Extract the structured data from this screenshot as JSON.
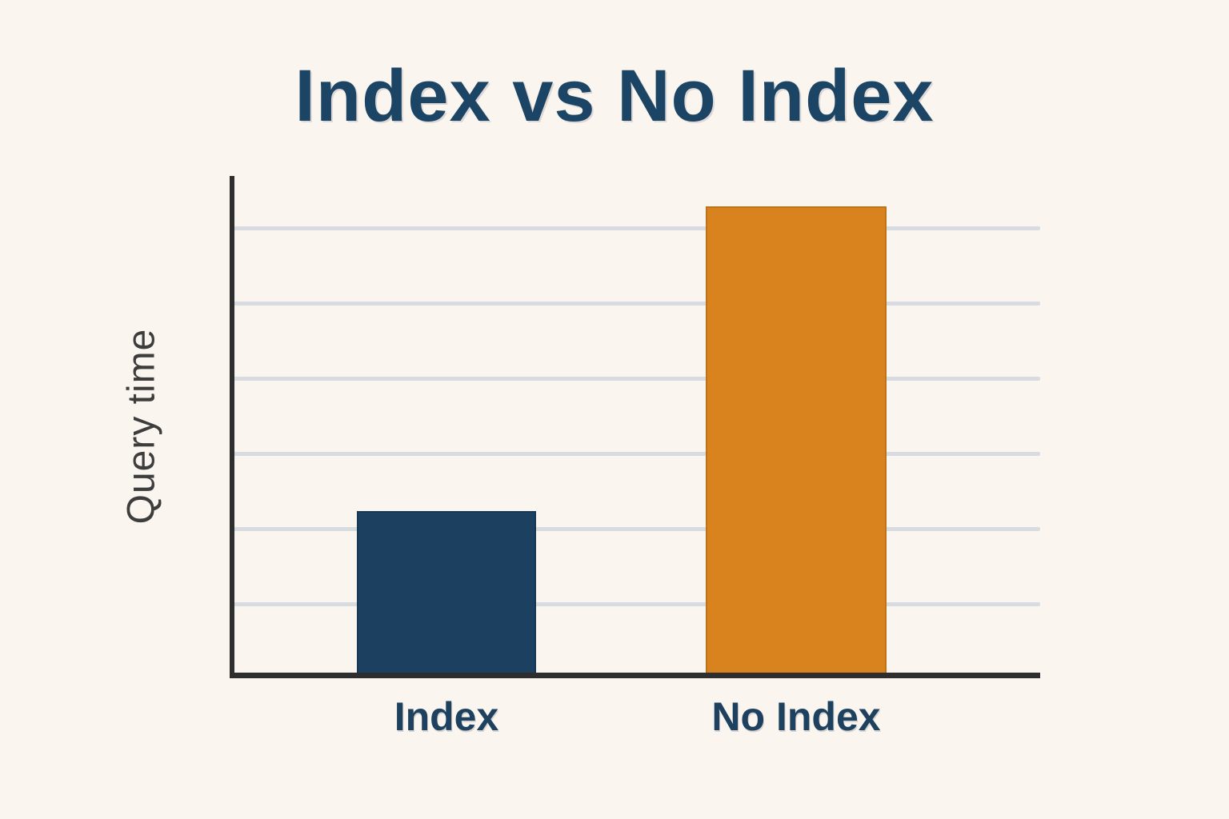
{
  "page": {
    "background": "#faf5ee"
  },
  "chart_data": {
    "type": "bar",
    "title": "Index vs No Index",
    "xlabel": "",
    "ylabel": "Query time",
    "categories": [
      "Index",
      "No Index"
    ],
    "values": [
      0.33,
      0.94
    ],
    "value_scale": "fraction of plot height (no numeric axis labels shown)",
    "ylim": [
      0,
      1
    ],
    "y_tick_labels": [],
    "grid": true,
    "gridline_count": 6,
    "legend": "none",
    "bar_colors": [
      "#1b4060",
      "#d9831f"
    ],
    "title_color": "#1c4565",
    "category_label_color": "#1d415f",
    "axis_color": "#2e2e2e",
    "gridline_color": "#d8dce1",
    "ylabel_color": "#3d3d3d"
  }
}
